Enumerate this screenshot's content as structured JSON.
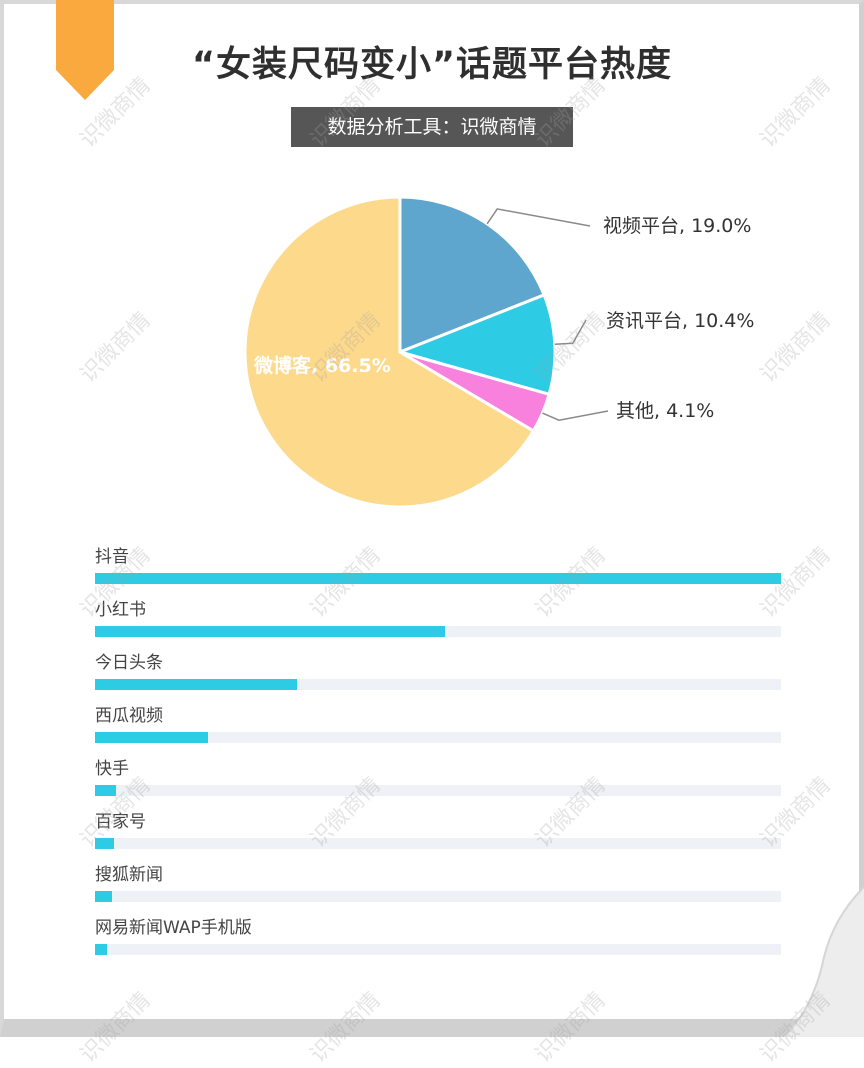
{
  "title": "“女装尺码变小”话题平台热度",
  "subtitle": "数据分析工具：识微商情",
  "watermark": "识微商情",
  "colors": {
    "weibo": "#fdd98c",
    "video": "#5ea6cd",
    "news": "#2ecbe4",
    "other": "#f781dc",
    "bar": "#2ecbe4",
    "track": "#eef1f5",
    "ribbon": "#f9a93e"
  },
  "chart_data": [
    {
      "type": "pie",
      "title": "",
      "slices": [
        {
          "label": "视频平台",
          "value": 19.0,
          "display": "视频平台, 19.0%"
        },
        {
          "label": "资讯平台",
          "value": 10.4,
          "display": "资讯平台, 10.4%"
        },
        {
          "label": "其他",
          "value": 4.1,
          "display": "其他, 4.1%"
        },
        {
          "label": "微博客",
          "value": 66.5,
          "display": "微博客, 66.5%"
        }
      ]
    },
    {
      "type": "bar",
      "orientation": "horizontal",
      "categories": [
        "抖音",
        "小红书",
        "今日头条",
        "西瓜视频",
        "快手",
        "百家号",
        "搜狐新闻",
        "网易新闻WAP手机版"
      ],
      "values": [
        100,
        51,
        29.5,
        16.5,
        3.0,
        2.8,
        2.5,
        1.8
      ],
      "grid": false
    }
  ]
}
